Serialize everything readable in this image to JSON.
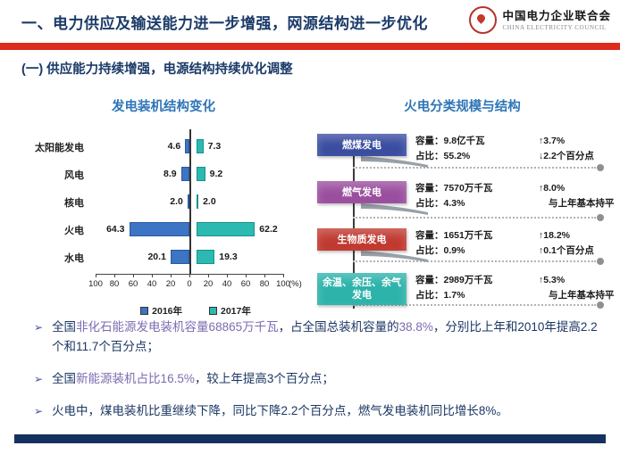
{
  "header": {
    "title": "一、电力供应及输送能力进一步增强，网源结构进一步优化",
    "accent_color": "#dd2b1c",
    "logo": {
      "name_cn": "中国电力企业联合会",
      "name_en": "CHINA ELECTRICITY COUNCIL"
    }
  },
  "subheader": "(一)  供应能力持续增强，电源结构持续优化调整",
  "chart_data": [
    {
      "type": "bar",
      "orientation": "horizontal-diverging",
      "title": "发电装机结构变化",
      "categories": [
        "太阳能发电",
        "风电",
        "核电",
        "火电",
        "水电"
      ],
      "series": [
        {
          "name": "2016年",
          "direction": "left",
          "color": "#3d74c4",
          "border": "#2a5a9e",
          "values": [
            4.6,
            8.9,
            2.0,
            64.3,
            20.1
          ]
        },
        {
          "name": "2017年",
          "direction": "right",
          "color": "#2cb9b2",
          "border": "#17918b",
          "values": [
            7.3,
            9.2,
            2.0,
            62.2,
            19.3
          ]
        }
      ],
      "axis_ticks": [
        "100",
        "80",
        "60",
        "40",
        "20",
        "0",
        "20",
        "40",
        "60",
        "80",
        "100"
      ],
      "axis_unit": "(%)",
      "xlim": [
        -100,
        100
      ],
      "legend_position": "bottom",
      "grid": false
    },
    {
      "type": "table",
      "title": "火电分类规模与结构",
      "field_labels": {
        "capacity": "容量：",
        "share": "占比："
      },
      "rows": [
        {
          "label": "燃煤发电",
          "color": "#3a4da0",
          "capacity": "9.8亿千瓦",
          "capacity_change": "↑3.7%",
          "share": "55.2%",
          "share_change": "↓2.2个百分点",
          "ribbon": true
        },
        {
          "label": "燃气发电",
          "color": "#9a4f9e",
          "capacity": "7570万千瓦",
          "capacity_change": "↑8.0%",
          "share": "4.3%",
          "share_change": "与上年基本持平",
          "ribbon": true
        },
        {
          "label": "生物质发电",
          "color": "#c03a31",
          "capacity": "1651万千瓦",
          "capacity_change": "↑18.2%",
          "share": "0.9%",
          "share_change": "↑0.1个百分点",
          "ribbon": true
        },
        {
          "label": "余温、余压、余气发电",
          "color": "#2eb3ab",
          "capacity": "2989万千瓦",
          "capacity_change": "↑5.3%",
          "share": "1.7%",
          "share_change": "与上年基本持平",
          "ribbon": false
        }
      ]
    }
  ],
  "bullets": [
    {
      "marker": "➢",
      "segments": [
        {
          "text": "全国",
          "highlight": false
        },
        {
          "text": "非化石能源发电装机容量68865万千瓦",
          "highlight": true
        },
        {
          "text": "，占全国总装机容量的",
          "highlight": false
        },
        {
          "text": "38.8%",
          "highlight": true
        },
        {
          "text": "，分别比上年和2010年提高2.2个和11.7个百分点；",
          "highlight": false
        }
      ]
    },
    {
      "marker": "➢",
      "segments": [
        {
          "text": "全国",
          "highlight": false
        },
        {
          "text": "新能源装机占比16.5%",
          "highlight": true
        },
        {
          "text": "，较上年提高3个百分点；",
          "highlight": false
        }
      ]
    },
    {
      "marker": "➢",
      "segments": [
        {
          "text": "火电中，煤电装机比重继续下降，同比下降2.2个百分点，燃气发电装机同比增长8%。",
          "highlight": false
        }
      ]
    }
  ],
  "colors": {
    "title_navy": "#1b3a68",
    "chart_title_blue": "#2e75b6",
    "highlight_purple": "#7d6bb0",
    "footer_navy": "#15315f",
    "ribbon_gray": "#98a0a8"
  }
}
